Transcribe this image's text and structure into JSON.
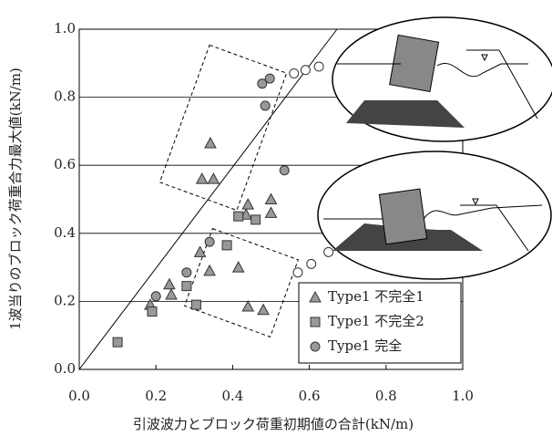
{
  "chart_data": {
    "type": "scatter",
    "xlabel": "引波波力とブロック荷重初期値の合計(kN/m)",
    "ylabel": "1波当りのブロック荷重合力最大値(kN/m)",
    "xlim": [
      0,
      1
    ],
    "ylim": [
      0,
      1
    ],
    "xticks": [
      {
        "value": 0,
        "label": "0.0"
      },
      {
        "value": 0.2,
        "label": "0.2"
      },
      {
        "value": 0.4,
        "label": "0.4"
      },
      {
        "value": 0.6,
        "label": "0.6"
      },
      {
        "value": 0.8,
        "label": "0.8"
      },
      {
        "value": 1,
        "label": "1.0"
      }
    ],
    "yticks": [
      {
        "value": 0,
        "label": "0.0"
      },
      {
        "value": 0.2,
        "label": "0.2"
      },
      {
        "value": 0.4,
        "label": "0.4"
      },
      {
        "value": 0.6,
        "label": "0.6"
      },
      {
        "value": 0.8,
        "label": "0.8"
      },
      {
        "value": 1,
        "label": "1.0"
      }
    ],
    "grid": true,
    "legend": "lower right",
    "series": [
      {
        "name": "Type1 不完全1",
        "marker": "triangle",
        "color": "#999999",
        "x": [
          0.342,
          0.32,
          0.35,
          0.5,
          0.5,
          0.44,
          0.435,
          0.315,
          0.235,
          0.24,
          0.185,
          0.34,
          0.415,
          0.44,
          0.48
        ],
        "values": [
          0.665,
          0.56,
          0.56,
          0.5,
          0.46,
          0.485,
          0.455,
          0.345,
          0.25,
          0.22,
          0.19,
          0.29,
          0.3,
          0.185,
          0.175
        ]
      },
      {
        "name": "Type1 不完全2",
        "marker": "square",
        "color": "#999999",
        "x": [
          0.1,
          0.19,
          0.28,
          0.305,
          0.385,
          0.415,
          0.46
        ],
        "values": [
          0.08,
          0.17,
          0.245,
          0.19,
          0.365,
          0.45,
          0.44
        ]
      },
      {
        "name": "Type1 完全",
        "marker": "circle",
        "color": "#999999",
        "x": [
          0.2,
          0.28,
          0.34,
          0.535,
          0.477,
          0.497,
          0.485
        ],
        "values": [
          0.215,
          0.285,
          0.375,
          0.585,
          0.84,
          0.855,
          0.775
        ]
      },
      {
        "marker": "circle",
        "color": "#ffffff",
        "x": [
          0.57,
          0.605,
          0.65,
          0.56,
          0.59,
          0.625
        ],
        "values": [
          0.285,
          0.31,
          0.345,
          0.87,
          0.88,
          0.89
        ]
      }
    ]
  }
}
